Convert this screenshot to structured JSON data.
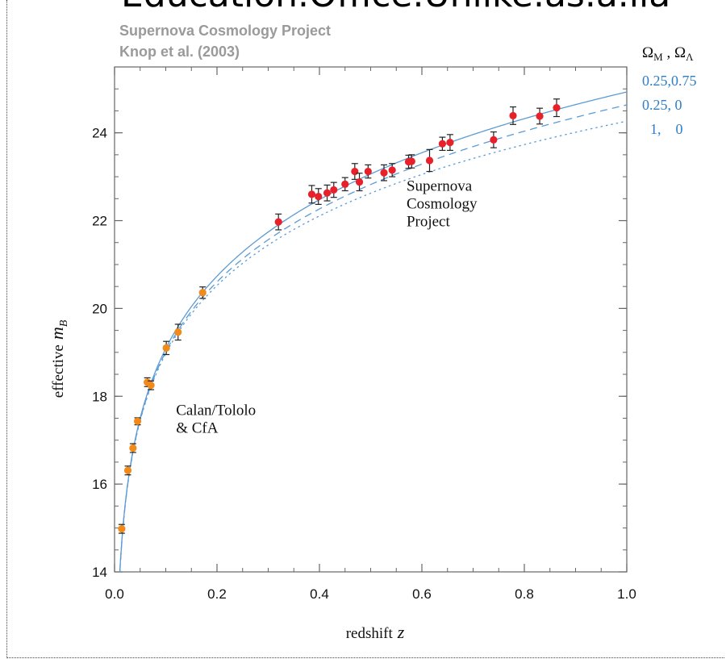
{
  "header_banner": "Education.Office.Unlike.as.a.lia",
  "chart_data": {
    "type": "scatter",
    "title": "Supernova Cosmology Project",
    "subtitle": "Knop et al. (2003)",
    "xlabel_text": "redshift",
    "xlabel_var": "z",
    "ylabel_text": "effective",
    "ylabel_var": "m",
    "ylabel_sub": "B",
    "xlim": [
      0.0,
      1.0
    ],
    "ylim": [
      14,
      25.5
    ],
    "x_ticks": [
      0.0,
      0.2,
      0.4,
      0.6,
      0.8,
      1.0
    ],
    "x_tick_labels": [
      "0.0",
      "0.2",
      "0.4",
      "0.6",
      "0.8",
      "1.0"
    ],
    "y_ticks": [
      14,
      16,
      18,
      20,
      22,
      24
    ],
    "y_tick_labels": [
      "14",
      "16",
      "18",
      "20",
      "22",
      "24"
    ],
    "grid": false,
    "legend": {
      "header": "Ω",
      "header_sub1": "M",
      "header_sep": " , Ω",
      "header_sub2": "Λ",
      "placement": "top-right outside",
      "entries": [
        {
          "label": "0.25,0.75",
          "style": "solid"
        },
        {
          "label": "0.25, 0",
          "style": "dashed"
        },
        {
          "label": "1,    0",
          "style": "dotted"
        }
      ]
    },
    "annotations": [
      {
        "lines": [
          "Supernova",
          "Cosmology",
          "Project"
        ],
        "x": 0.57,
        "y": 22.0
      },
      {
        "lines": [
          "Calan/Tololo",
          "& CfA"
        ],
        "x": 0.12,
        "y": 17.3
      }
    ],
    "series": [
      {
        "name": "Calan/Tololo & CfA",
        "color": "#f28a1a",
        "points": [
          {
            "x": 0.014,
            "y": 14.98,
            "err": 0.1
          },
          {
            "x": 0.026,
            "y": 16.31,
            "err": 0.1
          },
          {
            "x": 0.036,
            "y": 16.82,
            "err": 0.1
          },
          {
            "x": 0.045,
            "y": 17.43,
            "err": 0.08
          },
          {
            "x": 0.064,
            "y": 18.32,
            "err": 0.1
          },
          {
            "x": 0.071,
            "y": 18.25,
            "err": 0.1
          },
          {
            "x": 0.101,
            "y": 19.1,
            "err": 0.15
          },
          {
            "x": 0.124,
            "y": 19.46,
            "err": 0.18
          },
          {
            "x": 0.172,
            "y": 20.36,
            "err": 0.13
          }
        ]
      },
      {
        "name": "Supernova Cosmology Project",
        "color": "#e8202a",
        "points": [
          {
            "x": 0.32,
            "y": 21.97,
            "err": 0.18
          },
          {
            "x": 0.385,
            "y": 22.6,
            "err": 0.2
          },
          {
            "x": 0.398,
            "y": 22.55,
            "err": 0.18
          },
          {
            "x": 0.415,
            "y": 22.63,
            "err": 0.18
          },
          {
            "x": 0.428,
            "y": 22.7,
            "err": 0.17
          },
          {
            "x": 0.45,
            "y": 22.83,
            "err": 0.15
          },
          {
            "x": 0.469,
            "y": 23.12,
            "err": 0.18
          },
          {
            "x": 0.478,
            "y": 22.88,
            "err": 0.2
          },
          {
            "x": 0.495,
            "y": 23.12,
            "err": 0.15
          },
          {
            "x": 0.526,
            "y": 23.09,
            "err": 0.18
          },
          {
            "x": 0.542,
            "y": 23.15,
            "err": 0.15
          },
          {
            "x": 0.574,
            "y": 23.34,
            "err": 0.15
          },
          {
            "x": 0.58,
            "y": 23.35,
            "err": 0.15
          },
          {
            "x": 0.615,
            "y": 23.37,
            "err": 0.25
          },
          {
            "x": 0.64,
            "y": 23.75,
            "err": 0.15
          },
          {
            "x": 0.655,
            "y": 23.78,
            "err": 0.18
          },
          {
            "x": 0.74,
            "y": 23.84,
            "err": 0.18
          },
          {
            "x": 0.778,
            "y": 24.39,
            "err": 0.2
          },
          {
            "x": 0.83,
            "y": 24.38,
            "err": 0.18
          },
          {
            "x": 0.863,
            "y": 24.57,
            "err": 0.2
          }
        ]
      }
    ],
    "model_curves": [
      {
        "label": "0.25,0.75",
        "om": 0.25,
        "ol": 0.75,
        "style": "solid",
        "color": "#5b9bd5"
      },
      {
        "label": "0.25, 0",
        "om": 0.25,
        "ol": 0.0,
        "style": "dashed",
        "color": "#5b9bd5"
      },
      {
        "label": "1,    0",
        "om": 1.0,
        "ol": 0.0,
        "style": "dotted",
        "color": "#5b9bd5"
      }
    ],
    "colors": {
      "axis": "#666666",
      "title": "#9a9a9a",
      "legend_text": "#2f7fc8",
      "errorbar": "#222222",
      "text": "#111111"
    }
  }
}
